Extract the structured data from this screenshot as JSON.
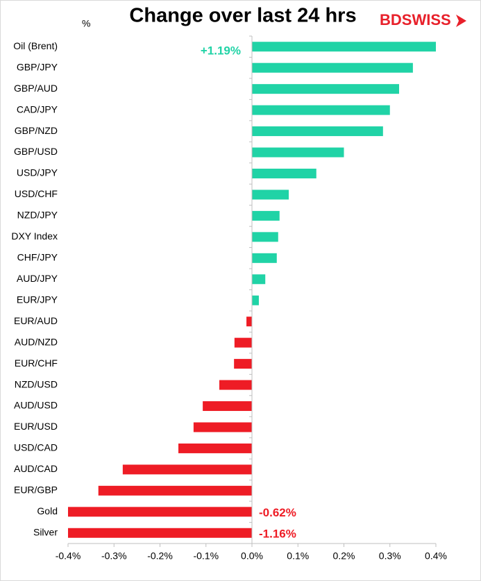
{
  "chart_data": {
    "type": "barh",
    "title": "Change over last 24 hrs",
    "ylabel": "%",
    "logo": "BDSWISS",
    "categories": [
      "Oil (Brent)",
      "GBP/JPY",
      "GBP/AUD",
      "CAD/JPY",
      "GBP/NZD",
      "GBP/USD",
      "USD/JPY",
      "USD/CHF",
      "NZD/JPY",
      "DXY Index",
      "CHF/JPY",
      "AUD/JPY",
      "EUR/JPY",
      "EUR/AUD",
      "AUD/NZD",
      "EUR/CHF",
      "NZD/USD",
      "AUD/USD",
      "EUR/USD",
      "USD/CAD",
      "AUD/CAD",
      "EUR/GBP",
      "Gold",
      "Silver"
    ],
    "values": [
      1.19,
      0.35,
      0.32,
      0.3,
      0.285,
      0.2,
      0.14,
      0.08,
      0.06,
      0.057,
      0.054,
      0.029,
      0.015,
      -0.012,
      -0.038,
      -0.039,
      -0.071,
      -0.107,
      -0.127,
      -0.16,
      -0.281,
      -0.334,
      -0.62,
      -1.16
    ],
    "value_labels": [
      "+1.19%",
      null,
      null,
      null,
      null,
      null,
      null,
      null,
      null,
      null,
      null,
      null,
      null,
      null,
      null,
      null,
      null,
      null,
      null,
      null,
      null,
      null,
      "-0.62%",
      "-1.16%"
    ],
    "positive_color": "#20d3a6",
    "negative_color": "#ee1c25",
    "xlim": [
      -0.4,
      0.4
    ],
    "xticks": [
      {
        "value": -0.4,
        "label": "-0.4%"
      },
      {
        "value": -0.3,
        "label": "-0.3%"
      },
      {
        "value": -0.2,
        "label": "-0.2%"
      },
      {
        "value": -0.1,
        "label": "-0.1%"
      },
      {
        "value": 0,
        "label": "0.0%"
      },
      {
        "value": 0.1,
        "label": "0.1%"
      },
      {
        "value": 0.2,
        "label": "0.2%"
      },
      {
        "value": 0.3,
        "label": "0.3%"
      },
      {
        "value": 0.4,
        "label": "0.4%"
      }
    ],
    "grid": false
  }
}
